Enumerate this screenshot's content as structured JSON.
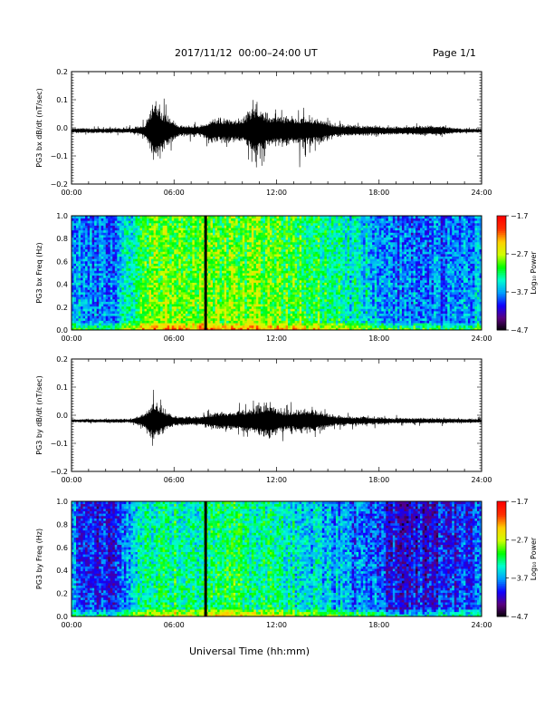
{
  "header": {
    "title": "2017/11/12  00:00–24:00 UT",
    "page": "Page 1/1"
  },
  "xlabel": "Universal Time (hh:mm)",
  "colors": {
    "trace": "#000000",
    "background": "#ffffff",
    "colormap": [
      "#000000",
      "#5a007f",
      "#1000ff",
      "#00a0ff",
      "#00ffd0",
      "#00ff00",
      "#d0ff00",
      "#ffd000",
      "#ff3000",
      "#ff0000"
    ]
  },
  "chart_data": [
    {
      "type": "line",
      "ylabel": "PG3 bx dB/dt (nT/sec)",
      "xticks": [
        "00:00",
        "06:00",
        "12:00",
        "18:00",
        "24:00"
      ],
      "yticks": [
        "0.2",
        "0.1",
        "0.0",
        "−0.1",
        "−0.2"
      ],
      "xlim": [
        0,
        24
      ],
      "ylim": [
        -0.2,
        0.2
      ],
      "x_unit": "hours UT",
      "baseline": -0.01,
      "envelope": [
        {
          "x": 0,
          "amp": 0.012
        },
        {
          "x": 3.5,
          "amp": 0.012
        },
        {
          "x": 4.3,
          "amp": 0.03
        },
        {
          "x": 4.6,
          "amp": 0.1
        },
        {
          "x": 4.9,
          "amp": 0.16
        },
        {
          "x": 5.3,
          "amp": 0.1
        },
        {
          "x": 6.2,
          "amp": 0.03
        },
        {
          "x": 7.5,
          "amp": 0.025
        },
        {
          "x": 8.2,
          "amp": 0.06
        },
        {
          "x": 10.0,
          "amp": 0.06
        },
        {
          "x": 10.8,
          "amp": 0.13
        },
        {
          "x": 11.5,
          "amp": 0.08
        },
        {
          "x": 13.5,
          "amp": 0.07
        },
        {
          "x": 14.5,
          "amp": 0.06
        },
        {
          "x": 15.5,
          "amp": 0.03
        },
        {
          "x": 18.5,
          "amp": 0.02
        },
        {
          "x": 21.5,
          "amp": 0.025
        },
        {
          "x": 22.5,
          "amp": 0.012
        },
        {
          "x": 24,
          "amp": 0.01
        }
      ]
    },
    {
      "type": "heatmap",
      "ylabel": "PG3 bx Freq (Hz)",
      "xticks": [
        "00:00",
        "06:00",
        "12:00",
        "18:00",
        "24:00"
      ],
      "yticks": [
        "1.0",
        "0.8",
        "0.6",
        "0.4",
        "0.2",
        "0.0"
      ],
      "xlim": [
        0,
        24
      ],
      "ylim": [
        0,
        1.0
      ],
      "colorbar": {
        "label": "Log₁₀ Power",
        "ticks": [
          "−1.7",
          "−2.7",
          "−3.7",
          "−4.7"
        ],
        "range": [
          -4.7,
          -1.7
        ]
      },
      "gap_at_hours": 7.85,
      "activity": [
        {
          "x": 0,
          "level": 0.35
        },
        {
          "x": 2.5,
          "level": 0.3
        },
        {
          "x": 3.0,
          "level": 0.4
        },
        {
          "x": 4.5,
          "level": 0.62
        },
        {
          "x": 7.0,
          "level": 0.62
        },
        {
          "x": 9.0,
          "level": 0.62
        },
        {
          "x": 12.0,
          "level": 0.6
        },
        {
          "x": 15.0,
          "level": 0.52
        },
        {
          "x": 17.0,
          "level": 0.42
        },
        {
          "x": 19.0,
          "level": 0.33
        },
        {
          "x": 22.0,
          "level": 0.34
        },
        {
          "x": 24,
          "level": 0.37
        }
      ]
    },
    {
      "type": "line",
      "ylabel": "PG3 by dB/dt (nT/sec)",
      "xticks": [
        "00:00",
        "06:00",
        "12:00",
        "18:00",
        "24:00"
      ],
      "yticks": [
        "0.2",
        "0.1",
        "0.0",
        "−0.1",
        "−0.2"
      ],
      "xlim": [
        0,
        24
      ],
      "ylim": [
        -0.2,
        0.2
      ],
      "x_unit": "hours UT",
      "baseline": -0.02,
      "envelope": [
        {
          "x": 0,
          "amp": 0.008
        },
        {
          "x": 3.5,
          "amp": 0.01
        },
        {
          "x": 4.3,
          "amp": 0.04
        },
        {
          "x": 4.8,
          "amp": 0.1
        },
        {
          "x": 5.2,
          "amp": 0.07
        },
        {
          "x": 6.0,
          "amp": 0.025
        },
        {
          "x": 7.5,
          "amp": 0.02
        },
        {
          "x": 8.2,
          "amp": 0.04
        },
        {
          "x": 10.5,
          "amp": 0.06
        },
        {
          "x": 11.5,
          "amp": 0.09
        },
        {
          "x": 12.5,
          "amp": 0.05
        },
        {
          "x": 14.0,
          "amp": 0.06
        },
        {
          "x": 15.5,
          "amp": 0.025
        },
        {
          "x": 19.0,
          "amp": 0.015
        },
        {
          "x": 24,
          "amp": 0.01
        }
      ]
    },
    {
      "type": "heatmap",
      "ylabel": "PG3 by Freq (Hz)",
      "xticks": [
        "00:00",
        "06:00",
        "12:00",
        "18:00",
        "24:00"
      ],
      "yticks": [
        "1.0",
        "0.8",
        "0.6",
        "0.4",
        "0.2",
        "0.0"
      ],
      "xlim": [
        0,
        24
      ],
      "ylim": [
        0,
        1.0
      ],
      "colorbar": {
        "label": "Log₁₀ Power",
        "ticks": [
          "−1.7",
          "−2.7",
          "−3.7",
          "−4.7"
        ],
        "range": [
          -4.7,
          -1.7
        ]
      },
      "gap_at_hours": 7.85,
      "activity": [
        {
          "x": 0,
          "level": 0.33
        },
        {
          "x": 1.5,
          "level": 0.24
        },
        {
          "x": 2.5,
          "level": 0.26
        },
        {
          "x": 3.5,
          "level": 0.4
        },
        {
          "x": 5.0,
          "level": 0.52
        },
        {
          "x": 7.0,
          "level": 0.5
        },
        {
          "x": 9.0,
          "level": 0.54
        },
        {
          "x": 12.0,
          "level": 0.48
        },
        {
          "x": 15.0,
          "level": 0.4
        },
        {
          "x": 17.5,
          "level": 0.3
        },
        {
          "x": 19.5,
          "level": 0.22
        },
        {
          "x": 22.5,
          "level": 0.26
        },
        {
          "x": 24,
          "level": 0.3
        }
      ]
    }
  ]
}
